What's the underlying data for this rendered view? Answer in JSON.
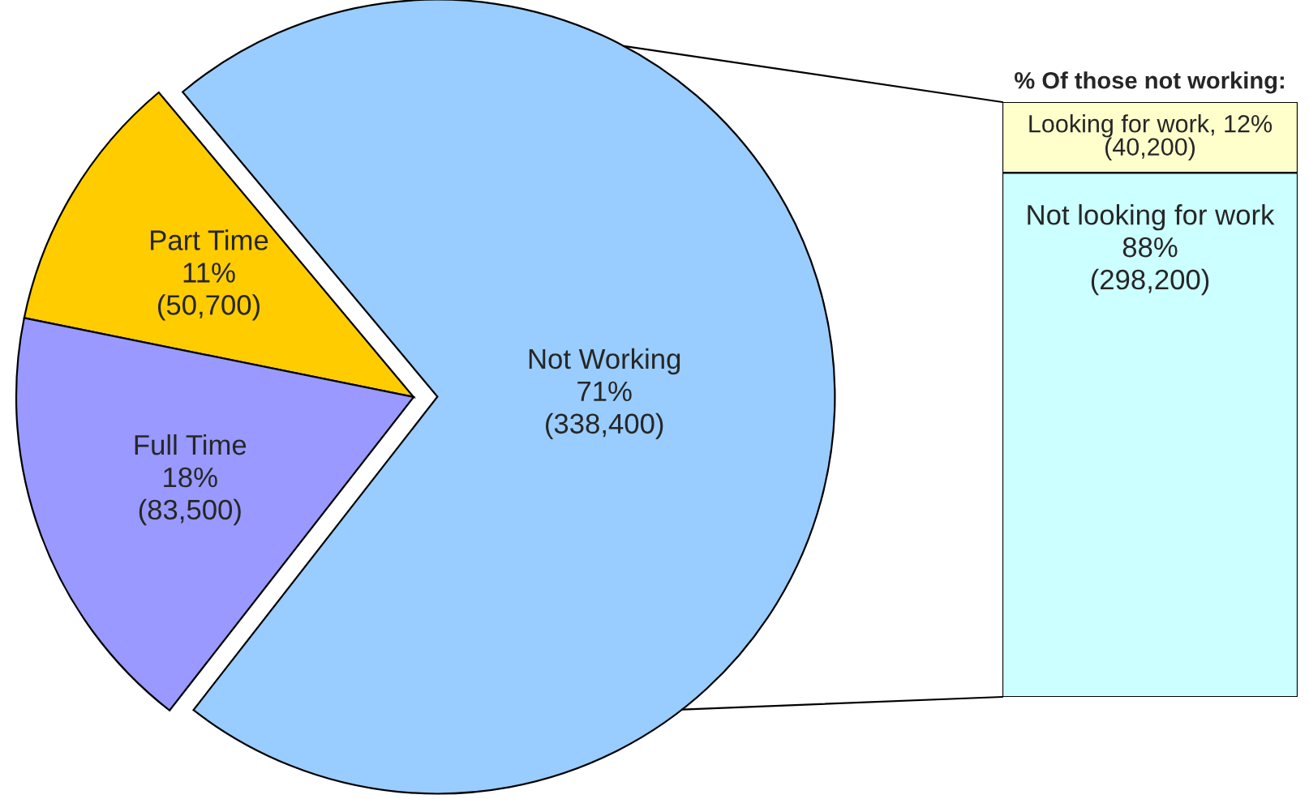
{
  "chart_data": [
    {
      "type": "pie",
      "categories": [
        "Not Working",
        "Part Time",
        "Full Time"
      ],
      "values": [
        338400,
        50700,
        83500
      ],
      "colors": [
        "#99ccff",
        "#ffcc00",
        "#9999ff"
      ],
      "value_labels": [
        "71%\n(338,400)",
        "11%\n(50,700)",
        "18%\n(83,500)"
      ]
    },
    {
      "type": "bar",
      "title": "% Of those not working:",
      "stacked": true,
      "categories": [
        null
      ],
      "series": [
        {
          "color": "#ccffff",
          "values": [
            298200
          ],
          "value_labels": [
            "Not looking for work\n88%\n(298,200)"
          ]
        },
        {
          "color": "#ffffcc",
          "values": [
            40200
          ],
          "value_labels": [
            "Looking for work, 12%\n(40,200)"
          ]
        }
      ]
    }
  ]
}
